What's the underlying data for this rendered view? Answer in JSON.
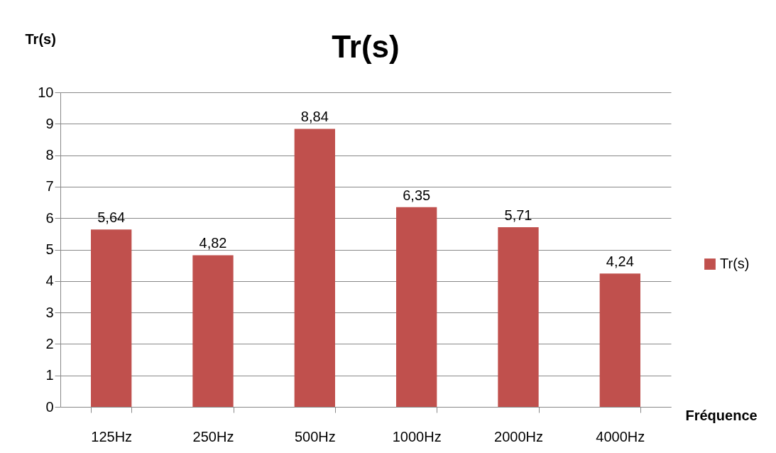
{
  "chart_data": {
    "type": "bar",
    "title": "Tr(s)",
    "ylabel": "Tr(s)",
    "xlabel": "Fréquence",
    "categories": [
      "125Hz",
      "250Hz",
      "500Hz",
      "1000Hz",
      "2000Hz",
      "4000Hz"
    ],
    "series": [
      {
        "name": "Tr(s)",
        "color": "#c0504d",
        "values": [
          5.64,
          4.82,
          8.84,
          6.35,
          5.71,
          4.24
        ],
        "value_labels": [
          "5,64",
          "4,82",
          "8,84",
          "6,35",
          "5,71",
          "4,24"
        ]
      }
    ],
    "ylim": [
      0,
      10
    ],
    "yticks": [
      0,
      1,
      2,
      3,
      4,
      5,
      6,
      7,
      8,
      9,
      10
    ],
    "grid": "y",
    "legend": "right"
  }
}
